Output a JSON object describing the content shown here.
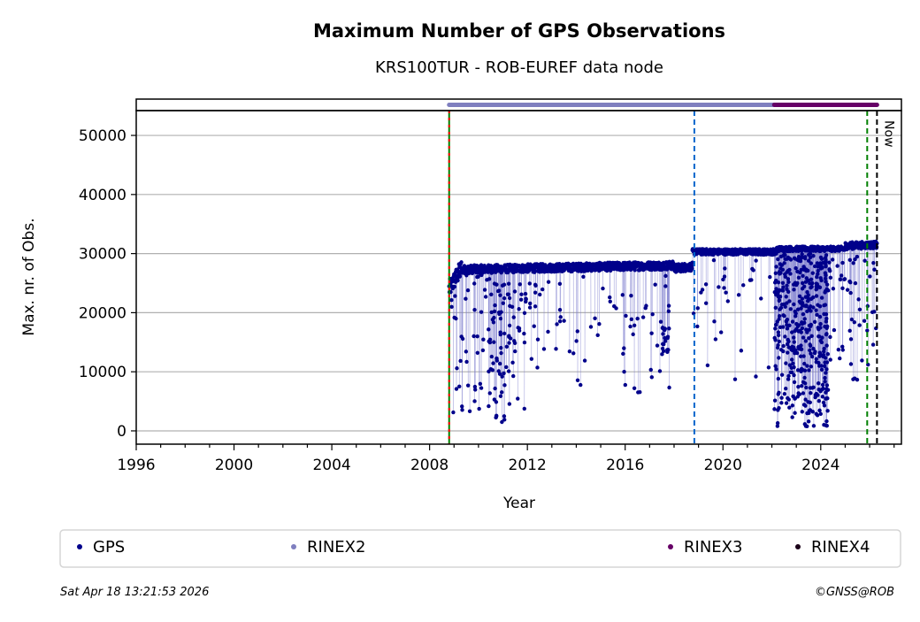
{
  "chart_data": {
    "type": "scatter",
    "title": "Maximum Number of GPS Observations",
    "subtitle": "KRS100TUR - ROB-EUREF data node",
    "xlabel": "Year",
    "ylabel": "Max. nr. of Obs.",
    "xlim": [
      1996,
      2027.3
    ],
    "ylim": [
      -2250,
      54200
    ],
    "xticks": [
      "1996",
      "2000",
      "2004",
      "2008",
      "2012",
      "2016",
      "2020",
      "2024"
    ],
    "xtick_values": [
      1996,
      2000,
      2004,
      2008,
      2012,
      2016,
      2020,
      2024
    ],
    "yticks": [
      "0",
      "10000",
      "20000",
      "30000",
      "40000",
      "50000"
    ],
    "ytick_values": [
      0,
      10000,
      20000,
      30000,
      40000,
      50000
    ],
    "grid": "horizontal",
    "series": [
      {
        "name": "GPS",
        "color": "#00008b",
        "baseline_segments": [
          {
            "x0": 2008.8,
            "x1": 2009.3,
            "y0": 24000,
            "y1": 27500,
            "noise": 1500
          },
          {
            "x0": 2009.3,
            "x1": 2018.0,
            "y0": 27300,
            "y1": 28000,
            "noise": 700
          },
          {
            "x0": 2018.0,
            "x1": 2018.75,
            "y0": 27500,
            "y1": 27800,
            "noise": 700
          },
          {
            "x0": 2018.75,
            "x1": 2022.2,
            "y0": 30300,
            "y1": 30300,
            "noise": 500
          },
          {
            "x0": 2022.2,
            "x1": 2025.0,
            "y0": 30800,
            "y1": 30800,
            "noise": 400
          },
          {
            "x0": 2025.0,
            "x1": 2026.3,
            "y0": 31300,
            "y1": 31500,
            "noise": 600
          }
        ],
        "dip_clusters": [
          {
            "x0": 2008.8,
            "x1": 2010.4,
            "ymin": 3000,
            "ymax": 27000,
            "n": 45
          },
          {
            "x0": 2010.4,
            "x1": 2011.3,
            "ymin": 500,
            "ymax": 26000,
            "n": 70
          },
          {
            "x0": 2011.3,
            "x1": 2012.0,
            "ymin": 1500,
            "ymax": 26000,
            "n": 25
          },
          {
            "x0": 2012.0,
            "x1": 2016.0,
            "ymin": 7000,
            "ymax": 27000,
            "n": 45
          },
          {
            "x0": 2016.0,
            "x1": 2018.0,
            "ymin": 3000,
            "ymax": 27000,
            "n": 30
          },
          {
            "x0": 2017.5,
            "x1": 2017.8,
            "ymin": 13000,
            "ymax": 18000,
            "n": 15
          },
          {
            "x0": 2018.8,
            "x1": 2022.0,
            "ymin": 8000,
            "ymax": 30000,
            "n": 35
          },
          {
            "x0": 2022.1,
            "x1": 2024.3,
            "ymin": 500,
            "ymax": 30000,
            "n": 420
          },
          {
            "x0": 2024.3,
            "x1": 2026.3,
            "ymin": 8000,
            "ymax": 30000,
            "n": 55
          }
        ]
      }
    ],
    "rinex_strip": [
      {
        "name": "RINEX2",
        "color": "#7f7fbf",
        "x0": 2008.8,
        "x1": 2022.1
      },
      {
        "name": "RINEX3",
        "color": "#660066",
        "x0": 2022.1,
        "x1": 2026.3
      },
      {
        "name": "RINEX4",
        "color": "#1a0018",
        "x0": null,
        "x1": null
      }
    ],
    "vertical_lines": [
      {
        "x": 2008.8,
        "colors": [
          "#008000",
          "#ff0000"
        ]
      },
      {
        "x": 2018.83,
        "colors": [
          "#0066cc"
        ]
      },
      {
        "x": 2025.9,
        "colors": [
          "#008000"
        ]
      },
      {
        "x": 2026.3,
        "colors": [
          "#000000"
        ],
        "label": "Now"
      }
    ],
    "legend": {
      "placement": "bottom",
      "entries": [
        {
          "label": "GPS",
          "color": "#00008b"
        },
        {
          "label": "RINEX2",
          "color": "#7f7fbf"
        },
        {
          "label": "RINEX3",
          "color": "#660066"
        },
        {
          "label": "RINEX4",
          "color": "#1a0018"
        }
      ]
    }
  },
  "footer": {
    "timestamp": "Sat Apr 18 13:21:53 2026",
    "credit": "©GNSS@ROB"
  }
}
